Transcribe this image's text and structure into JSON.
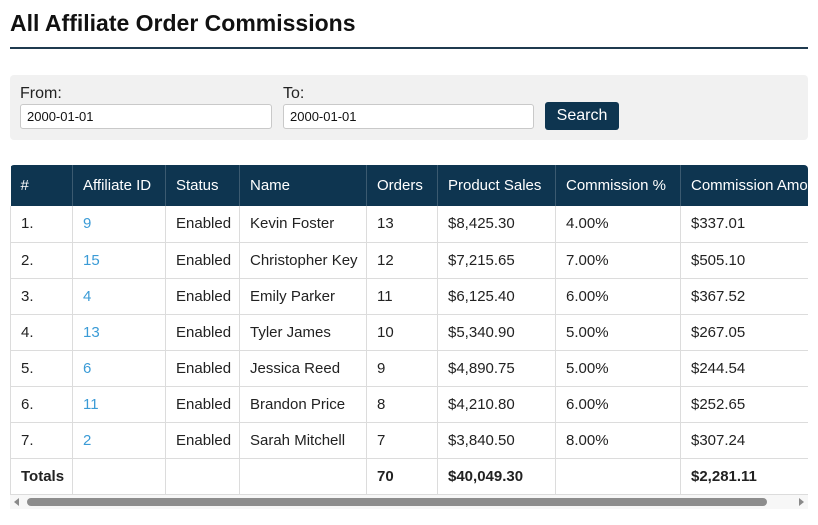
{
  "page": {
    "title": "All Affiliate Order Commissions"
  },
  "filters": {
    "from_label": "From:",
    "from_value": "2000-01-01",
    "to_label": "To:",
    "to_value": "2000-01-01",
    "search_label": "Search"
  },
  "table": {
    "headers": [
      "#",
      "Affiliate ID",
      "Status",
      "Name",
      "Orders",
      "Product Sales",
      "Commission %",
      "Commission Amo"
    ],
    "rows": [
      {
        "num": "1.",
        "affiliate_id": "9",
        "status": "Enabled",
        "name": "Kevin Foster",
        "orders": "13",
        "sales": "$8,425.30",
        "pct": "4.00%",
        "amount": "$337.01"
      },
      {
        "num": "2.",
        "affiliate_id": "15",
        "status": "Enabled",
        "name": "Christopher Key",
        "orders": "12",
        "sales": "$7,215.65",
        "pct": "7.00%",
        "amount": "$505.10"
      },
      {
        "num": "3.",
        "affiliate_id": "4",
        "status": "Enabled",
        "name": "Emily Parker",
        "orders": "11",
        "sales": "$6,125.40",
        "pct": "6.00%",
        "amount": "$367.52"
      },
      {
        "num": "4.",
        "affiliate_id": "13",
        "status": "Enabled",
        "name": "Tyler James",
        "orders": "10",
        "sales": "$5,340.90",
        "pct": "5.00%",
        "amount": "$267.05"
      },
      {
        "num": "5.",
        "affiliate_id": "6",
        "status": "Enabled",
        "name": "Jessica Reed",
        "orders": "9",
        "sales": "$4,890.75",
        "pct": "5.00%",
        "amount": "$244.54"
      },
      {
        "num": "6.",
        "affiliate_id": "11",
        "status": "Enabled",
        "name": "Brandon Price",
        "orders": "8",
        "sales": "$4,210.80",
        "pct": "6.00%",
        "amount": "$252.65"
      },
      {
        "num": "7.",
        "affiliate_id": "2",
        "status": "Enabled",
        "name": "Sarah Mitchell",
        "orders": "7",
        "sales": "$3,840.50",
        "pct": "8.00%",
        "amount": "$307.24"
      }
    ],
    "totals": {
      "label": "Totals",
      "orders": "70",
      "sales": "$40,049.30",
      "amount": "$2,281.11"
    }
  },
  "colors": {
    "header_bg": "#0e3550",
    "link": "#3b9bd6",
    "panel_bg": "#f1f1f1"
  }
}
